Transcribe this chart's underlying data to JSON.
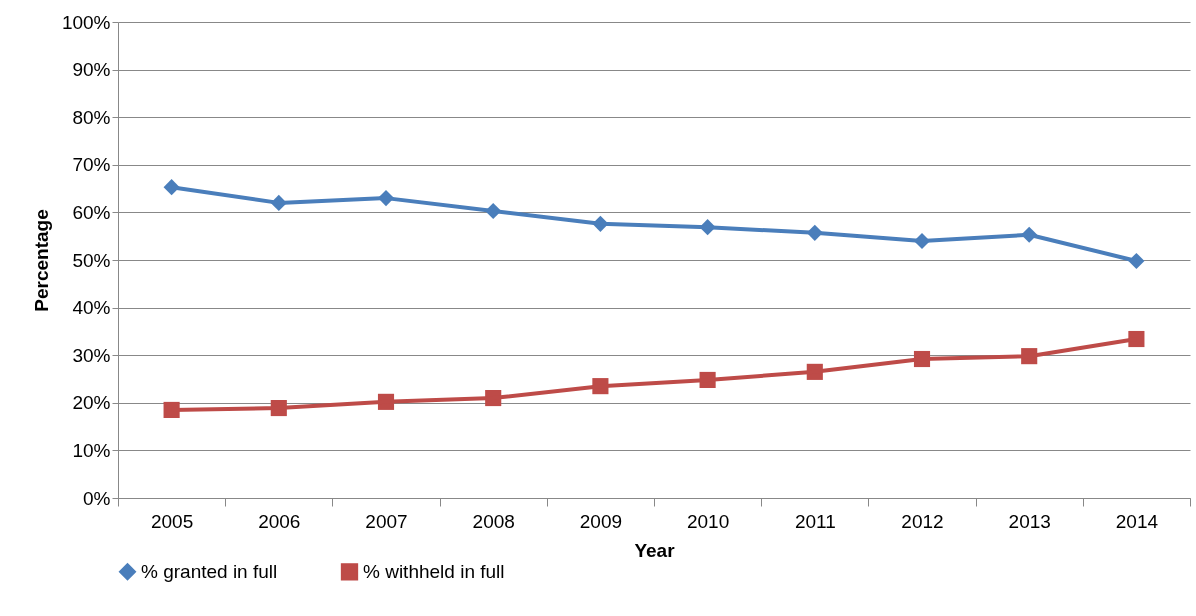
{
  "chart_data": {
    "type": "line",
    "xlabel": "Year",
    "ylabel": "Percentage",
    "categories": [
      "2005",
      "2006",
      "2007",
      "2008",
      "2009",
      "2010",
      "2011",
      "2012",
      "2013",
      "2014"
    ],
    "series": [
      {
        "name": "% granted in full",
        "color": "#4a7ebb",
        "marker": "diamond",
        "values": [
          65.3,
          62.0,
          63.0,
          60.3,
          57.6,
          56.9,
          55.7,
          54.0,
          55.3,
          49.8
        ]
      },
      {
        "name": "% withheld in full",
        "color": "#be4b48",
        "marker": "square",
        "values": [
          18.5,
          18.9,
          20.2,
          21.0,
          23.5,
          24.8,
          26.5,
          29.2,
          29.8,
          33.4
        ]
      }
    ],
    "ylim": [
      0,
      100
    ],
    "yticks": [
      {
        "value": 0,
        "label": "0%"
      },
      {
        "value": 10,
        "label": "10%"
      },
      {
        "value": 20,
        "label": "20%"
      },
      {
        "value": 30,
        "label": "30%"
      },
      {
        "value": 40,
        "label": "40%"
      },
      {
        "value": 50,
        "label": "50%"
      },
      {
        "value": 60,
        "label": "60%"
      },
      {
        "value": 70,
        "label": "70%"
      },
      {
        "value": 80,
        "label": "80%"
      },
      {
        "value": 90,
        "label": "90%"
      },
      {
        "value": 100,
        "label": "100%"
      }
    ],
    "grid": "y",
    "legend": "bottom",
    "line_style": "solid"
  }
}
